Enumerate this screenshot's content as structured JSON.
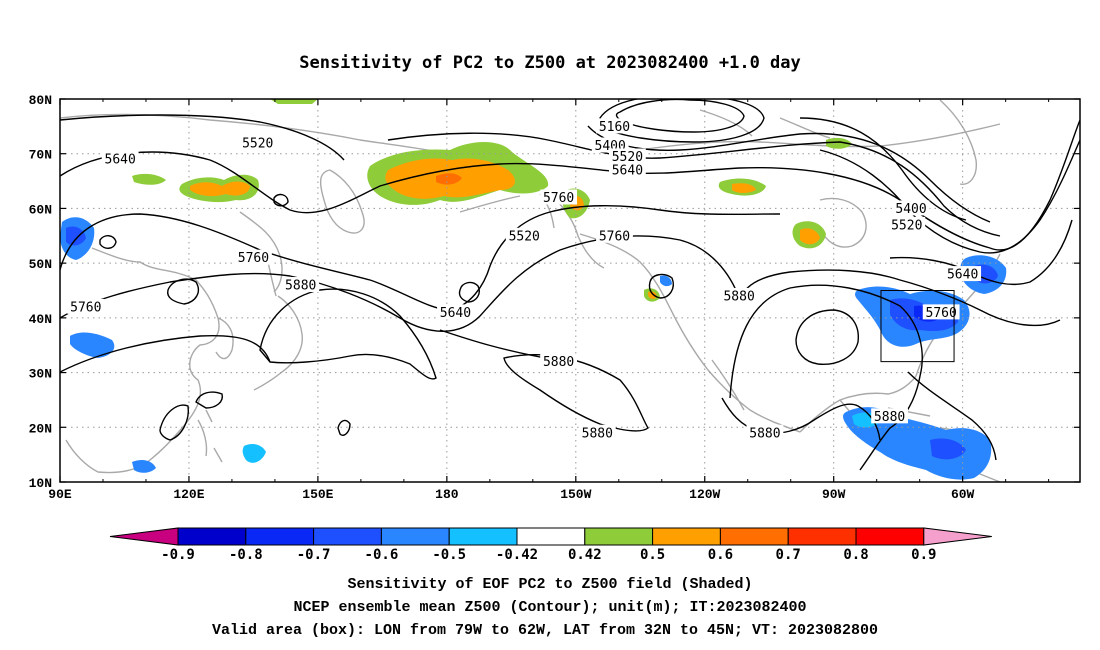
{
  "title": "Sensitivity of PC2 to Z500 at 2023082400 +1.0 day",
  "map": {
    "lon_ticks": [
      "90E",
      "120E",
      "150E",
      "180",
      "150W",
      "120W",
      "90W",
      "60W"
    ],
    "lat_ticks": [
      "80N",
      "70N",
      "60N",
      "50N",
      "40N",
      "30N",
      "20N",
      "10N"
    ],
    "contour_labels": [
      {
        "text": "5160",
        "lon": 219,
        "lat": 75
      },
      {
        "text": "5400",
        "lon": 218,
        "lat": 71.5
      },
      {
        "text": "5520",
        "lon": 222,
        "lat": 69.5
      },
      {
        "text": "5640",
        "lon": 222,
        "lat": 67
      },
      {
        "text": "5760",
        "lon": 206,
        "lat": 62
      },
      {
        "text": "5760",
        "lon": 219,
        "lat": 55
      },
      {
        "text": "5520",
        "lon": 198,
        "lat": 55
      },
      {
        "text": "5520",
        "lon": 136,
        "lat": 72
      },
      {
        "text": "5640",
        "lon": 104,
        "lat": 69
      },
      {
        "text": "5760",
        "lon": 135,
        "lat": 51
      },
      {
        "text": "5880",
        "lon": 146,
        "lat": 46
      },
      {
        "text": "5640",
        "lon": 182,
        "lat": 41
      },
      {
        "text": "5760",
        "lon": 96,
        "lat": 42
      },
      {
        "text": "5880",
        "lon": 206,
        "lat": 32
      },
      {
        "text": "5880",
        "lon": 215,
        "lat": 19
      },
      {
        "text": "5880",
        "lon": 248,
        "lat": 44
      },
      {
        "text": "5880",
        "lon": 254,
        "lat": 19
      },
      {
        "text": "5400",
        "lon": 288,
        "lat": 60
      },
      {
        "text": "5520",
        "lon": 287,
        "lat": 57
      },
      {
        "text": "5640",
        "lon": 300,
        "lat": 48
      },
      {
        "text": "5760",
        "lon": 295,
        "lat": 41
      },
      {
        "text": "5880",
        "lon": 283,
        "lat": 22
      }
    ],
    "valid_box": {
      "lon_min": 281,
      "lon_max": 298,
      "lat_min": 32,
      "lat_max": 45
    }
  },
  "colorbar": {
    "labels": [
      "-0.9",
      "-0.8",
      "-0.7",
      "-0.6",
      "-0.5",
      "-0.42",
      "0.42",
      "0.5",
      "0.6",
      "0.7",
      "0.8",
      "0.9"
    ],
    "colors": [
      "#c8007f",
      "#0000cc",
      "#0a28f5",
      "#1e50ff",
      "#2a86ff",
      "#14c0ff",
      "#ffffff",
      "#8fcc3a",
      "#ffa000",
      "#ff6e00",
      "#ff3000",
      "#ff0000",
      "#f5a0cc"
    ]
  },
  "caption": {
    "line1": "Sensitivity of EOF PC2 to Z500 field (Shaded)",
    "line2": "NCEP ensemble mean Z500 (Contour); unit(m); IT:2023082400",
    "line3": "Valid area (box): LON from 79W to 62W, LAT from 32N to 45N; VT: 2023082800"
  }
}
